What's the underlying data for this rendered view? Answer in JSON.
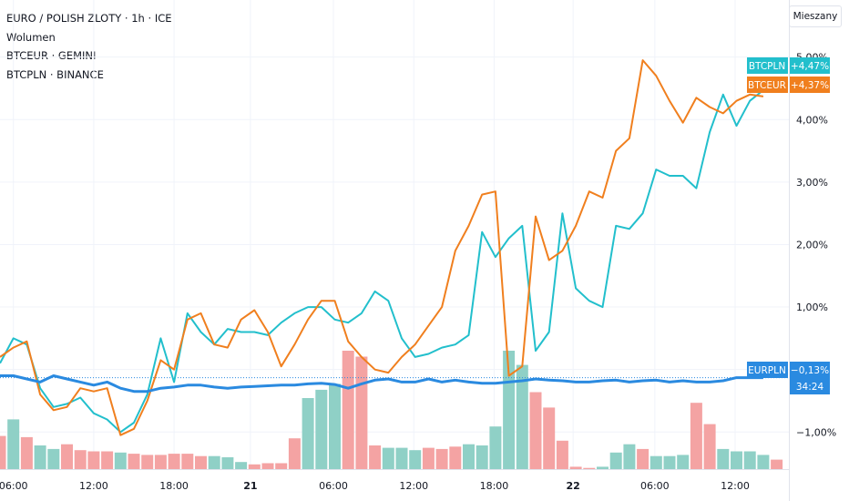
{
  "legend": {
    "main": "EURO / POLISH ZLOTY · 1h · ICE",
    "volume": "Wolumen",
    "series2": "BTCEUR · GEMINI",
    "series3": "BTCPLN · BINANCE"
  },
  "scale_button": "Mieszany",
  "colors": {
    "btcpln": "#22bfcc",
    "btceur": "#f07f1e",
    "eurpln": "#2a8ae0",
    "vol_up": "#8fd0c6",
    "vol_down": "#f4a3a3",
    "grid": "#f0f3fa",
    "axis_text": "#131722"
  },
  "chart_data": {
    "type": "line",
    "ylim": [
      -1.9,
      5.6
    ],
    "y_ticks": [
      {
        "value": 5,
        "label": "5,00%"
      },
      {
        "value": 4,
        "label": "4,00%"
      },
      {
        "value": 3,
        "label": "3,00%"
      },
      {
        "value": 2,
        "label": "2,00%"
      },
      {
        "value": 1,
        "label": "1,00%"
      },
      {
        "value": 0,
        "label": "0,00%"
      },
      {
        "value": -1,
        "label": "−1,00%"
      }
    ],
    "x_ticks": [
      {
        "index": 1,
        "label": "06:00",
        "bold": false
      },
      {
        "index": 7,
        "label": "12:00",
        "bold": false
      },
      {
        "index": 13,
        "label": "18:00",
        "bold": false
      },
      {
        "index": 18.7,
        "label": "21",
        "bold": true
      },
      {
        "index": 24.9,
        "label": "06:00",
        "bold": false
      },
      {
        "index": 30.9,
        "label": "12:00",
        "bold": false
      },
      {
        "index": 36.9,
        "label": "18:00",
        "bold": false
      },
      {
        "index": 42.8,
        "label": "22",
        "bold": true
      },
      {
        "index": 48.9,
        "label": "06:00",
        "bold": false
      },
      {
        "index": 54.9,
        "label": "12:00",
        "bold": false
      }
    ],
    "series": [
      {
        "name": "BTCPLN",
        "label_value": "+4,47%",
        "values": [
          0.1,
          0.5,
          0.4,
          -0.3,
          -0.6,
          -0.55,
          -0.45,
          -0.7,
          -0.8,
          -1.0,
          -0.85,
          -0.4,
          0.5,
          -0.2,
          0.9,
          0.6,
          0.4,
          0.65,
          0.6,
          0.6,
          0.55,
          0.75,
          0.9,
          1.0,
          1.0,
          0.8,
          0.75,
          0.9,
          1.25,
          1.1,
          0.5,
          0.2,
          0.25,
          0.35,
          0.4,
          0.55,
          2.2,
          1.8,
          2.1,
          2.3,
          0.3,
          0.6,
          2.5,
          1.3,
          1.1,
          1.0,
          2.3,
          2.25,
          2.5,
          3.2,
          3.1,
          3.1,
          2.9,
          3.8,
          4.4,
          3.9,
          4.3,
          4.47
        ]
      },
      {
        "name": "BTCEUR",
        "label_value": "+4,37%",
        "values": [
          0.2,
          0.35,
          0.45,
          -0.4,
          -0.65,
          -0.6,
          -0.3,
          -0.35,
          -0.3,
          -1.05,
          -0.95,
          -0.5,
          0.15,
          0.0,
          0.8,
          0.9,
          0.4,
          0.35,
          0.8,
          0.95,
          0.6,
          0.05,
          0.4,
          0.8,
          1.1,
          1.1,
          0.45,
          0.2,
          0.0,
          -0.05,
          0.2,
          0.4,
          0.7,
          1.0,
          1.9,
          2.3,
          2.8,
          2.85,
          -0.1,
          0.05,
          2.45,
          1.75,
          1.9,
          2.3,
          2.85,
          2.75,
          3.5,
          3.7,
          4.95,
          4.7,
          4.3,
          3.95,
          4.35,
          4.2,
          4.1,
          4.3,
          4.4,
          4.37
        ]
      },
      {
        "name": "EURPLN",
        "label_value": "−0,13%",
        "values": [
          -0.1,
          -0.1,
          -0.15,
          -0.2,
          -0.1,
          -0.15,
          -0.2,
          -0.25,
          -0.2,
          -0.3,
          -0.35,
          -0.35,
          -0.3,
          -0.28,
          -0.25,
          -0.25,
          -0.28,
          -0.3,
          -0.28,
          -0.27,
          -0.26,
          -0.25,
          -0.25,
          -0.23,
          -0.22,
          -0.24,
          -0.3,
          -0.23,
          -0.17,
          -0.15,
          -0.2,
          -0.2,
          -0.15,
          -0.2,
          -0.17,
          -0.2,
          -0.22,
          -0.22,
          -0.2,
          -0.18,
          -0.15,
          -0.17,
          -0.18,
          -0.2,
          -0.2,
          -0.18,
          -0.17,
          -0.2,
          -0.18,
          -0.17,
          -0.2,
          -0.18,
          -0.2,
          -0.2,
          -0.18,
          -0.13,
          -0.13,
          -0.13
        ]
      }
    ],
    "volume": {
      "values": [
        28,
        42,
        27,
        20,
        17,
        21,
        16,
        15,
        15,
        14,
        13,
        12,
        12,
        13,
        13,
        11,
        11,
        10,
        6,
        4,
        5,
        5,
        26,
        60,
        67,
        72,
        100,
        95,
        20,
        18,
        18,
        16,
        18,
        17,
        19,
        21,
        20,
        36,
        100,
        88,
        65,
        52,
        24,
        2,
        1,
        2,
        14,
        21,
        17,
        11,
        11,
        12,
        56,
        38,
        17,
        15,
        15,
        12,
        8
      ],
      "up": [
        false,
        true,
        false,
        true,
        true,
        false,
        false,
        false,
        false,
        true,
        false,
        false,
        false,
        false,
        false,
        false,
        true,
        true,
        true,
        false,
        false,
        false,
        false,
        true,
        true,
        true,
        false,
        false,
        false,
        true,
        true,
        true,
        false,
        false,
        false,
        true,
        true,
        true,
        true,
        true,
        false,
        false,
        false,
        false,
        false,
        true,
        true,
        true,
        false,
        true,
        true,
        true,
        false,
        false,
        true,
        true,
        true,
        true,
        false
      ]
    },
    "price_labels": [
      {
        "name": "BTCPLN",
        "value": "+4,47%"
      },
      {
        "name": "BTCEUR",
        "value": "+4,37%"
      },
      {
        "name": "EURPLN",
        "value": "−0,13%"
      },
      {
        "name": "countdown",
        "value": "34:24"
      }
    ]
  }
}
